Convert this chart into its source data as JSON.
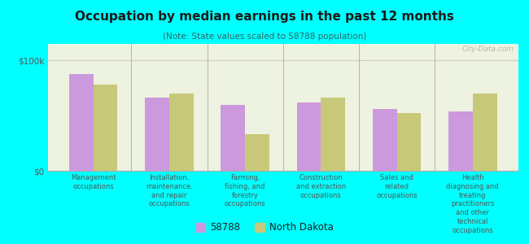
{
  "title": "Occupation by median earnings in the past 12 months",
  "subtitle": "(Note: State values scaled to 58788 population)",
  "background_color": "#00FFFF",
  "plot_bg_color": "#eef2e0",
  "categories": [
    "Management\noccupations",
    "Installation,\nmaintenance,\nand repair\noccupations",
    "Farming,\nfishing, and\nforestry\noccupations",
    "Construction\nand extraction\noccupations",
    "Sales and\nrelated\noccupations",
    "Health\ndiagnosing and\ntreating\npractitioners\nand other\ntechnical\noccupations"
  ],
  "values_58788": [
    88000,
    66000,
    60000,
    62000,
    56000,
    54000
  ],
  "values_nd": [
    78000,
    70000,
    33000,
    66000,
    52000,
    70000
  ],
  "color_58788": "#cc99dd",
  "color_nd": "#c8c87a",
  "ylim": [
    0,
    115000
  ],
  "yticks": [
    0,
    100000
  ],
  "ytick_labels": [
    "$0",
    "$100k"
  ],
  "legend_label_58788": "58788",
  "legend_label_nd": "North Dakota",
  "watermark": "City-Data.com"
}
